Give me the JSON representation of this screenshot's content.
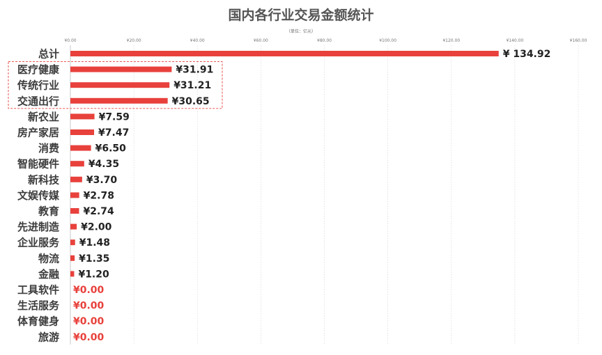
{
  "chart_data": {
    "type": "bar",
    "orientation": "horizontal",
    "title": "国内各行业交易金额统计",
    "subtitle": "（单位：亿元）",
    "xlim": [
      0,
      160
    ],
    "x_ticks": [
      "¥0.00",
      "¥20.00",
      "¥40.00",
      "¥60.00",
      "¥80.00",
      "¥100.00",
      "¥120.00",
      "¥140.00",
      "¥160.00"
    ],
    "grid": true,
    "categories": [
      "总计",
      "医疗健康",
      "传统行业",
      "交通出行",
      "新农业",
      "房产家居",
      "消费",
      "智能硬件",
      "新科技",
      "文娱传媒",
      "教育",
      "先进制造",
      "企业服务",
      "物流",
      "金融",
      "工具软件",
      "生活服务",
      "体育健身",
      "旅游"
    ],
    "values": [
      134.92,
      31.91,
      31.21,
      30.65,
      7.59,
      7.47,
      6.5,
      4.35,
      3.7,
      2.78,
      2.74,
      2.0,
      1.48,
      1.35,
      1.2,
      0.0,
      0.0,
      0.0,
      0.0
    ],
    "labels": [
      "¥ 134.92",
      "¥31.91",
      "¥31.21",
      "¥30.65",
      "¥7.59",
      "¥7.47",
      "¥6.50",
      "¥4.35",
      "¥3.70",
      "¥2.78",
      "¥2.74",
      "¥2.00",
      "¥1.48",
      "¥1.35",
      "¥1.20",
      "¥0.00",
      "¥0.00",
      "¥0.00",
      "¥0.00"
    ],
    "highlight_categories": [
      "医疗健康",
      "传统行业",
      "交通出行"
    ],
    "colors": {
      "bar": "#e8413c",
      "label_default": "#222222",
      "label_zero": "#e8413c",
      "grid": "#d0d0d0",
      "highlight_box": "#e8413c"
    }
  }
}
